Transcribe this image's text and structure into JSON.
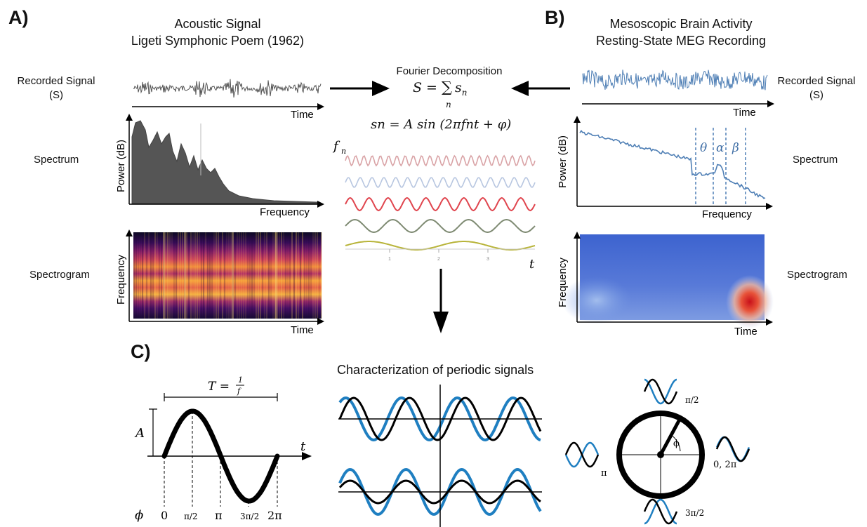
{
  "panel_a": {
    "letter": "A)",
    "title_line1": "Acoustic Signal",
    "title_line2": "Ligeti Symphonic Poem (1962)",
    "row_signal": "Recorded Signal",
    "row_signal_sub": "(S)",
    "row_spectrum": "Spectrum",
    "row_spectrogram": "Spectrogram",
    "axis_time": "Time",
    "axis_power": "Power (dB)",
    "axis_frequency": "Frequency"
  },
  "panel_b": {
    "letter": "B)",
    "title_line1": "Mesoscopic Brain Activity",
    "title_line2": "Resting-State MEG Recording",
    "row_signal": "Recorded Signal",
    "row_signal_sub": "(S)",
    "row_spectrum": "Spectrum",
    "row_spectrogram": "Spectrogram",
    "axis_time": "Time",
    "axis_power": "Power (dB)",
    "axis_frequency": "Frequency",
    "bands": [
      "θ",
      "α",
      "β"
    ]
  },
  "center": {
    "heading": "Fourier Decomposition",
    "eq_lhs": "S = ",
    "eq_sum": "∑",
    "eq_sum_index": "n",
    "eq_rhs": "s",
    "eq_rhs_sub": "n",
    "eq2": "sn = A sin (2πfnt + φ)",
    "f_label": "f",
    "f_sub": "n",
    "t_label": "t",
    "tick_labels": [
      "1",
      "2",
      "3"
    ],
    "wave_colors": [
      "#d9a3a6",
      "#b7c6e0",
      "#e0454e",
      "#7e8a72",
      "#b8b43a"
    ]
  },
  "panel_c": {
    "letter": "C)",
    "title": "Characterization of periodic signals",
    "period_label": "T =",
    "period_num": "1",
    "period_den": "f",
    "amp_label": "A",
    "t_label": "t",
    "phi_label": "ϕ",
    "phase_ticks": [
      "0",
      "π/2",
      "π",
      "3π/2",
      "2π"
    ],
    "dial_phi": "ϕ",
    "dial_top": "π/2",
    "dial_left": "π",
    "dial_right": "0, 2π",
    "dial_bottom": "3π/2",
    "colors": {
      "black": "#000000",
      "blue": "#1f7fc1"
    }
  }
}
